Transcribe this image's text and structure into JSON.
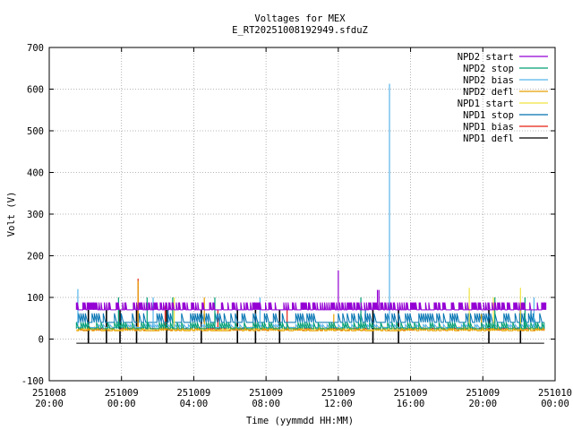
{
  "chart_data": {
    "type": "line",
    "title": "Voltages for MEX",
    "subtitle": "E_RT20251008192949.sfduZ",
    "xlabel": "Time (yymmdd HH:MM)",
    "ylabel": "Volt (V)",
    "ylim": [
      -100,
      700
    ],
    "yticks": [
      -100,
      0,
      100,
      200,
      300,
      400,
      500,
      600,
      700
    ],
    "xlim": [
      "2025-10-08 20:00",
      "2025-10-10 00:00"
    ],
    "xticks": [
      {
        "date": "251008",
        "time": "20:00"
      },
      {
        "date": "251009",
        "time": "00:00"
      },
      {
        "date": "251009",
        "time": "04:00"
      },
      {
        "date": "251009",
        "time": "08:00"
      },
      {
        "date": "251009",
        "time": "12:00"
      },
      {
        "date": "251009",
        "time": "16:00"
      },
      {
        "date": "251009",
        "time": "20:00"
      },
      {
        "date": "251010",
        "time": "00:00"
      }
    ],
    "grid": true,
    "legend_position": "top-right",
    "data_range_x": [
      "2025-10-08 21:30",
      "2025-10-09 23:30"
    ],
    "series": [
      {
        "name": "NPD2 start",
        "color": "#9400d3",
        "base": 70,
        "high": 88,
        "spikes": [
          {
            "x": "2025-10-09 12:00",
            "y": 165
          },
          {
            "x": "2025-10-09 14:10",
            "y": 118
          },
          {
            "x": "2025-10-09 14:15",
            "y": 118
          }
        ]
      },
      {
        "name": "NPD2 stop",
        "color": "#009e73",
        "base": 25,
        "high": 40,
        "spikes": [
          {
            "x": "2025-10-08 23:50",
            "y": 100
          },
          {
            "x": "2025-10-09 01:25",
            "y": 100
          },
          {
            "x": "2025-10-09 02:50",
            "y": 100
          },
          {
            "x": "2025-10-09 05:10",
            "y": 100
          },
          {
            "x": "2025-10-09 13:15",
            "y": 100
          },
          {
            "x": "2025-10-09 20:40",
            "y": 100
          },
          {
            "x": "2025-10-09 22:20",
            "y": 100
          }
        ]
      },
      {
        "name": "NPD2 bias",
        "color": "#56b4e9",
        "base": 28,
        "high": 35,
        "spikes": [
          {
            "x": "2025-10-08 21:35",
            "y": 120
          },
          {
            "x": "2025-10-09 14:50",
            "y": 613
          },
          {
            "x": "2025-10-09 01:45",
            "y": 100
          },
          {
            "x": "2025-10-09 07:40",
            "y": 100
          },
          {
            "x": "2025-10-09 22:50",
            "y": 100
          }
        ]
      },
      {
        "name": "NPD2 defl",
        "color": "#e69f00",
        "base": 20,
        "high": 30,
        "spikes": [
          {
            "x": "2025-10-09 00:55",
            "y": 140
          },
          {
            "x": "2025-10-09 04:35",
            "y": 100
          },
          {
            "x": "2025-10-09 11:45",
            "y": 60
          },
          {
            "x": "2025-10-09 19:55",
            "y": 60
          }
        ]
      },
      {
        "name": "NPD1 start",
        "color": "#f0e442",
        "base": 22,
        "high": 28,
        "spikes": [
          {
            "x": "2025-10-09 02:55",
            "y": 100
          },
          {
            "x": "2025-10-09 19:15",
            "y": 123
          },
          {
            "x": "2025-10-09 22:05",
            "y": 123
          },
          {
            "x": "2025-10-09 20:35",
            "y": 100
          }
        ]
      },
      {
        "name": "NPD1 stop",
        "color": "#0072b2",
        "base": 40,
        "high": 62,
        "spikes": [
          {
            "x": "2025-10-09 02:35",
            "y": 70
          },
          {
            "x": "2025-10-09 13:30",
            "y": 70
          },
          {
            "x": "2025-10-09 22:40",
            "y": 70
          }
        ]
      },
      {
        "name": "NPD1 bias",
        "color": "#e51e10",
        "base": 22,
        "high": 28,
        "spikes": [
          {
            "x": "2025-10-09 00:55",
            "y": 145
          },
          {
            "x": "2025-10-09 02:25",
            "y": 80
          },
          {
            "x": "2025-10-09 05:20",
            "y": 70
          },
          {
            "x": "2025-10-09 09:10",
            "y": 70
          }
        ]
      },
      {
        "name": "NPD1 defl",
        "color": "#000000",
        "base": -10,
        "high": 70,
        "spikes": [
          {
            "x": "2025-10-08 22:10",
            "y": 70
          },
          {
            "x": "2025-10-08 23:10",
            "y": 70
          },
          {
            "x": "2025-10-08 23:55",
            "y": 70
          },
          {
            "x": "2025-10-09 00:50",
            "y": 70
          },
          {
            "x": "2025-10-09 02:30",
            "y": 70
          },
          {
            "x": "2025-10-09 04:25",
            "y": 70
          },
          {
            "x": "2025-10-09 06:25",
            "y": 70
          },
          {
            "x": "2025-10-09 07:25",
            "y": 70
          },
          {
            "x": "2025-10-09 08:45",
            "y": 70
          },
          {
            "x": "2025-10-09 13:55",
            "y": 70
          },
          {
            "x": "2025-10-09 15:20",
            "y": 70
          },
          {
            "x": "2025-10-09 20:20",
            "y": 70
          },
          {
            "x": "2025-10-09 22:05",
            "y": 70
          }
        ]
      }
    ]
  }
}
